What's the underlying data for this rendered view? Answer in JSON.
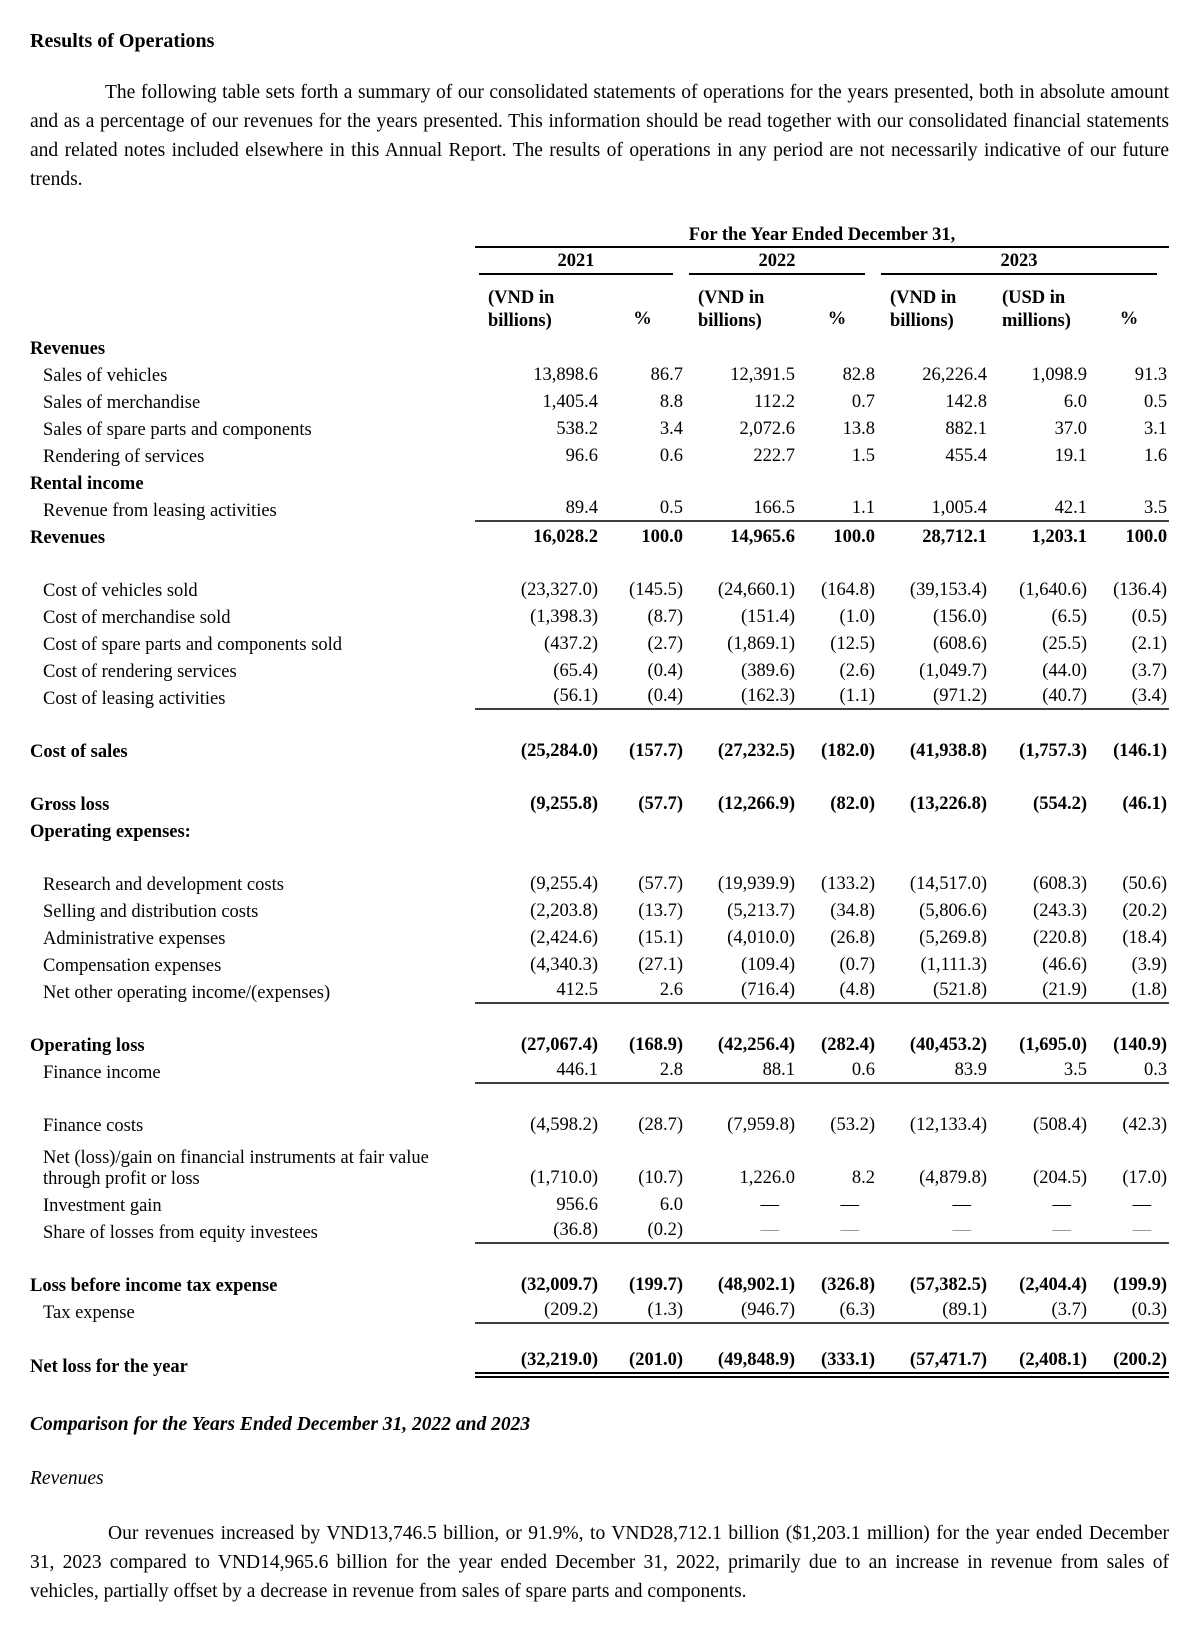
{
  "page": {
    "title": "Results of Operations",
    "intro": "The following table sets forth a summary of our consolidated statements of operations for the years presented, both in absolute amount and as a percentage of our revenues for the years presented. This information should be read together with our consolidated financial statements and related notes included elsewhere in this Annual Report. The results of operations in any period are not necessarily indicative of our future trends.",
    "comparison_heading": "Comparison for the Years Ended December 31, 2022 and 2023",
    "revenues_subheading": "Revenues",
    "revenues_paragraph": "Our revenues increased by VND13,746.5 billion, or 91.9%, to VND28,712.1 billion ($1,203.1 million) for the year ended December 31, 2023 compared to VND14,965.6 billion for the year ended December 31, 2022, primarily due to an increase in revenue from sales of vehicles, partially offset by a decrease in revenue from sales of spare parts and components."
  },
  "table": {
    "spanner": "For the Year Ended December 31,",
    "year_groups": [
      {
        "label": "2021"
      },
      {
        "label": "2022"
      },
      {
        "label": "2023"
      }
    ],
    "subheaders": [
      "(VND in billions)",
      "%",
      "(VND in billions)",
      "%",
      "(VND in billions)",
      "(USD in millions)",
      "%"
    ],
    "rows": [
      {
        "label": "Revenues",
        "type": "section"
      },
      {
        "label": "Sales of vehicles",
        "type": "item",
        "values": [
          "13,898.6",
          "86.7",
          "12,391.5",
          "82.8",
          "26,226.4",
          "1,098.9",
          "91.3"
        ]
      },
      {
        "label": "Sales of merchandise",
        "type": "item",
        "values": [
          "1,405.4",
          "8.8",
          "112.2",
          "0.7",
          "142.8",
          "6.0",
          "0.5"
        ]
      },
      {
        "label": "Sales of spare parts and components",
        "type": "item",
        "values": [
          "538.2",
          "3.4",
          "2,072.6",
          "13.8",
          "882.1",
          "37.0",
          "3.1"
        ]
      },
      {
        "label": "Rendering of services",
        "type": "item",
        "values": [
          "96.6",
          "0.6",
          "222.7",
          "1.5",
          "455.4",
          "19.1",
          "1.6"
        ]
      },
      {
        "label": "Rental income",
        "type": "section"
      },
      {
        "label": "Revenue from leasing activities",
        "type": "item",
        "values": [
          "89.4",
          "0.5",
          "166.5",
          "1.1",
          "1,005.4",
          "42.1",
          "3.5"
        ],
        "rule": "single"
      },
      {
        "label": "Revenues",
        "type": "total",
        "values": [
          "16,028.2",
          "100.0",
          "14,965.6",
          "100.0",
          "28,712.1",
          "1,203.1",
          "100.0"
        ]
      },
      {
        "spacer": true
      },
      {
        "label": "Cost of vehicles sold",
        "type": "item",
        "values": [
          "(23,327.0)",
          "(145.5)",
          "(24,660.1)",
          "(164.8)",
          "(39,153.4)",
          "(1,640.6)",
          "(136.4)"
        ]
      },
      {
        "label": "Cost of merchandise sold",
        "type": "item",
        "values": [
          "(1,398.3)",
          "(8.7)",
          "(151.4)",
          "(1.0)",
          "(156.0)",
          "(6.5)",
          "(0.5)"
        ]
      },
      {
        "label": "Cost of spare parts and components sold",
        "type": "item",
        "values": [
          "(437.2)",
          "(2.7)",
          "(1,869.1)",
          "(12.5)",
          "(608.6)",
          "(25.5)",
          "(2.1)"
        ]
      },
      {
        "label": "Cost of rendering services",
        "type": "item",
        "values": [
          "(65.4)",
          "(0.4)",
          "(389.6)",
          "(2.6)",
          "(1,049.7)",
          "(44.0)",
          "(3.7)"
        ]
      },
      {
        "label": "Cost of leasing activities",
        "type": "item",
        "values": [
          "(56.1)",
          "(0.4)",
          "(162.3)",
          "(1.1)",
          "(971.2)",
          "(40.7)",
          "(3.4)"
        ],
        "rule": "single"
      },
      {
        "spacer": true
      },
      {
        "label": "Cost of sales",
        "type": "total",
        "values": [
          "(25,284.0)",
          "(157.7)",
          "(27,232.5)",
          "(182.0)",
          "(41,938.8)",
          "(1,757.3)",
          "(146.1)"
        ]
      },
      {
        "spacer": true
      },
      {
        "label": "Gross loss",
        "type": "total",
        "values": [
          "(9,255.8)",
          "(57.7)",
          "(12,266.9)",
          "(82.0)",
          "(13,226.8)",
          "(554.2)",
          "(46.1)"
        ]
      },
      {
        "label": "Operating expenses:",
        "type": "section"
      },
      {
        "spacer": true
      },
      {
        "label": "Research and development costs",
        "type": "item",
        "values": [
          "(9,255.4)",
          "(57.7)",
          "(19,939.9)",
          "(133.2)",
          "(14,517.0)",
          "(608.3)",
          "(50.6)"
        ]
      },
      {
        "label": "Selling and distribution costs",
        "type": "item",
        "values": [
          "(2,203.8)",
          "(13.7)",
          "(5,213.7)",
          "(34.8)",
          "(5,806.6)",
          "(243.3)",
          "(20.2)"
        ]
      },
      {
        "label": "Administrative expenses",
        "type": "item",
        "values": [
          "(2,424.6)",
          "(15.1)",
          "(4,010.0)",
          "(26.8)",
          "(5,269.8)",
          "(220.8)",
          "(18.4)"
        ]
      },
      {
        "label": "Compensation expenses",
        "type": "item",
        "values": [
          "(4,340.3)",
          "(27.1)",
          "(109.4)",
          "(0.7)",
          "(1,111.3)",
          "(46.6)",
          "(3.9)"
        ]
      },
      {
        "label": "Net other operating income/(expenses)",
        "type": "item",
        "values": [
          "412.5",
          "2.6",
          "(716.4)",
          "(4.8)",
          "(521.8)",
          "(21.9)",
          "(1.8)"
        ],
        "rule": "single"
      },
      {
        "spacer": true
      },
      {
        "label": "Operating loss",
        "type": "total",
        "values": [
          "(27,067.4)",
          "(168.9)",
          "(42,256.4)",
          "(282.4)",
          "(40,453.2)",
          "(1,695.0)",
          "(140.9)"
        ]
      },
      {
        "label": "Finance income",
        "type": "item",
        "values": [
          "446.1",
          "2.8",
          "88.1",
          "0.6",
          "83.9",
          "3.5",
          "0.3"
        ],
        "rule": "single"
      },
      {
        "spacer": true
      },
      {
        "label": "Finance costs",
        "type": "item",
        "values": [
          "(4,598.2)",
          "(28.7)",
          "(7,959.8)",
          "(53.2)",
          "(12,133.4)",
          "(508.4)",
          "(42.3)"
        ]
      },
      {
        "label": "Net (loss)/gain on financial instruments at fair value through profit or loss",
        "type": "item",
        "tall": true,
        "values": [
          "(1,710.0)",
          "(10.7)",
          "1,226.0",
          "8.2",
          "(4,879.8)",
          "(204.5)",
          "(17.0)"
        ]
      },
      {
        "label": "Investment gain",
        "type": "item",
        "values": [
          "956.6",
          "6.0",
          "—",
          "—",
          "—",
          "—",
          "—"
        ]
      },
      {
        "label": "Share of losses from equity investees",
        "type": "item",
        "values": [
          "(36.8)",
          "(0.2)",
          "—",
          "—",
          "—",
          "—",
          "—"
        ],
        "rule": "single",
        "muted_dashes": true
      },
      {
        "spacer": true
      },
      {
        "label": "Loss before income tax expense",
        "type": "total",
        "values": [
          "(32,009.7)",
          "(199.7)",
          "(48,902.1)",
          "(326.8)",
          "(57,382.5)",
          "(2,404.4)",
          "(199.9)"
        ]
      },
      {
        "label": "Tax expense",
        "type": "item",
        "values": [
          "(209.2)",
          "(1.3)",
          "(946.7)",
          "(6.3)",
          "(89.1)",
          "(3.7)",
          "(0.3)"
        ],
        "rule": "single"
      },
      {
        "spacer": true
      },
      {
        "label": "Net loss for the year",
        "type": "total",
        "values": [
          "(32,219.0)",
          "(201.0)",
          "(49,848.9)",
          "(333.1)",
          "(57,471.7)",
          "(2,408.1)",
          "(200.2)"
        ],
        "rule": "double"
      }
    ]
  }
}
